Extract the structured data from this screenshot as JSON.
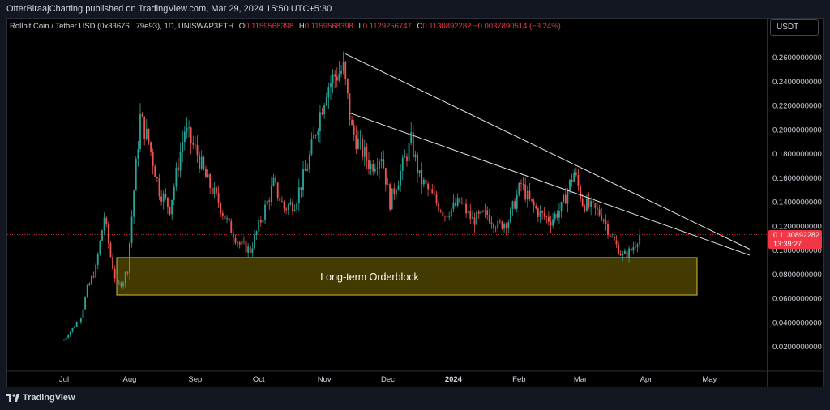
{
  "header": {
    "publisher_line": "OtterBiraajCharting published on TradingView.com, Mar 29, 2024 15:50 UTC+5:30"
  },
  "legend": {
    "symbol": "Rollbit Coin / Tether USD (0x33676...79e93), 1D, UNISWAP3ETH",
    "o_label": "O",
    "o_value": "0.1159568398",
    "h_label": "H",
    "h_value": "0.1159568398",
    "l_label": "L",
    "l_value": "0.1129256747",
    "c_label": "C",
    "c_value": "0.1130892282",
    "change": "−0.0037890514 (−3.24%)"
  },
  "currency_button": "USDT",
  "last_price": {
    "price": "0.1130892282",
    "countdown": "13:39:27"
  },
  "branding": "TradingView",
  "annotation": "Long-term Orderblock",
  "colors": {
    "up": "#26a69a",
    "down": "#ef5350",
    "zone_fill": "#4d4400",
    "zone_border": "#d4c03a",
    "last_price": "#f23645"
  },
  "chart_data": {
    "type": "candlestick",
    "title": "",
    "xlabel": "",
    "ylabel": "",
    "x_ticks": [
      "Jul",
      "Aug",
      "Sep",
      "Oct",
      "Nov",
      "Dec",
      "2024",
      "Feb",
      "Mar",
      "Apr",
      "May"
    ],
    "y_ticks": [
      "0.2600000000",
      "0.2400000000",
      "0.2200000000",
      "0.2000000000",
      "0.1800000000",
      "0.1600000000",
      "0.1400000000",
      "0.1200000000",
      "0.1000000000",
      "0.0800000000",
      "0.0600000000",
      "0.0400000000",
      "0.0200000000"
    ],
    "ylim": [
      0.004,
      0.283
    ],
    "series_keyframes": [
      [
        "2023-07-01",
        0.026
      ],
      [
        "2023-07-05",
        0.035
      ],
      [
        "2023-07-09",
        0.045
      ],
      [
        "2023-07-12",
        0.068
      ],
      [
        "2023-07-16",
        0.085
      ],
      [
        "2023-07-20",
        0.128
      ],
      [
        "2023-07-23",
        0.095
      ],
      [
        "2023-07-26",
        0.07
      ],
      [
        "2023-07-29",
        0.075
      ],
      [
        "2023-07-31",
        0.085
      ],
      [
        "2023-08-03",
        0.15
      ],
      [
        "2023-08-06",
        0.21
      ],
      [
        "2023-08-10",
        0.19
      ],
      [
        "2023-08-15",
        0.15
      ],
      [
        "2023-08-20",
        0.135
      ],
      [
        "2023-08-27",
        0.2
      ],
      [
        "2023-09-02",
        0.18
      ],
      [
        "2023-09-06",
        0.16
      ],
      [
        "2023-09-12",
        0.14
      ],
      [
        "2023-09-17",
        0.12
      ],
      [
        "2023-09-22",
        0.105
      ],
      [
        "2023-09-27",
        0.1
      ],
      [
        "2023-10-03",
        0.13
      ],
      [
        "2023-10-08",
        0.155
      ],
      [
        "2023-10-13",
        0.135
      ],
      [
        "2023-10-18",
        0.14
      ],
      [
        "2023-10-24",
        0.17
      ],
      [
        "2023-10-28",
        0.2
      ],
      [
        "2023-11-02",
        0.235
      ],
      [
        "2023-11-06",
        0.245
      ],
      [
        "2023-11-10",
        0.25
      ],
      [
        "2023-11-14",
        0.2
      ],
      [
        "2023-11-18",
        0.185
      ],
      [
        "2023-11-23",
        0.17
      ],
      [
        "2023-11-28",
        0.18
      ],
      [
        "2023-12-02",
        0.14
      ],
      [
        "2023-12-07",
        0.165
      ],
      [
        "2023-12-12",
        0.19
      ],
      [
        "2023-12-16",
        0.16
      ],
      [
        "2023-12-22",
        0.145
      ],
      [
        "2023-12-28",
        0.13
      ],
      [
        "2024-01-04",
        0.14
      ],
      [
        "2024-01-10",
        0.125
      ],
      [
        "2024-01-17",
        0.13
      ],
      [
        "2024-01-22",
        0.12
      ],
      [
        "2024-01-27",
        0.125
      ],
      [
        "2024-02-02",
        0.155
      ],
      [
        "2024-02-06",
        0.14
      ],
      [
        "2024-02-11",
        0.13
      ],
      [
        "2024-02-16",
        0.125
      ],
      [
        "2024-02-21",
        0.135
      ],
      [
        "2024-02-27",
        0.165
      ],
      [
        "2024-03-02",
        0.14
      ],
      [
        "2024-03-06",
        0.135
      ],
      [
        "2024-03-11",
        0.13
      ],
      [
        "2024-03-16",
        0.11
      ],
      [
        "2024-03-21",
        0.095
      ],
      [
        "2024-03-25",
        0.1
      ],
      [
        "2024-03-29",
        0.113
      ]
    ],
    "orderblock": {
      "label": "Long-term Orderblock",
      "x_start": "2023-07-21",
      "x_end": "2024-05-01",
      "y_low": 0.063,
      "y_high": 0.094
    },
    "trendlines": [
      {
        "x1": "2023-11-11",
        "y1": 0.263,
        "x2": "2024-05-20",
        "y2": 0.101
      },
      {
        "x1": "2023-11-13",
        "y1": 0.214,
        "x2": "2024-05-20",
        "y2": 0.096
      }
    ],
    "last_price_value": 0.1130892282
  }
}
